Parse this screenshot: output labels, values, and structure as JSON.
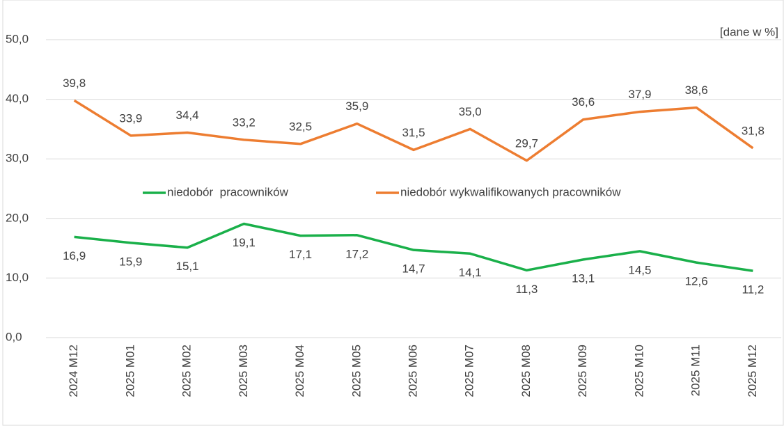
{
  "chart_data": {
    "type": "line",
    "annotation": "[dane w %]",
    "categories": [
      "2024 M12",
      "2025 M01",
      "2025 M02",
      "2025 M03",
      "2025 M04",
      "2025 M05",
      "2025 M06",
      "2025 M07",
      "2025 M08",
      "2025 M09",
      "2025 M10",
      "2025 M11",
      "2025 M12"
    ],
    "series": [
      {
        "name": "niedobór  pracowników",
        "color": "#1ab04a",
        "label_position": "below",
        "values": [
          16.9,
          15.9,
          15.1,
          19.1,
          17.1,
          17.2,
          14.7,
          14.1,
          11.3,
          13.1,
          14.5,
          12.6,
          11.2
        ],
        "value_labels": [
          "16,9",
          "15,9",
          "15,1",
          "19,1",
          "17,1",
          "17,2",
          "14,7",
          "14,1",
          "11,3",
          "13,1",
          "14,5",
          "12,6",
          "11,2"
        ]
      },
      {
        "name": "niedobór wykwalifikowanych pracowników",
        "color": "#ed7d31",
        "label_position": "above",
        "values": [
          39.8,
          33.9,
          34.4,
          33.2,
          32.5,
          35.9,
          31.5,
          35.0,
          29.7,
          36.6,
          37.9,
          38.6,
          31.8
        ],
        "value_labels": [
          "39,8",
          "33,9",
          "34,4",
          "33,2",
          "32,5",
          "35,9",
          "31,5",
          "35,0",
          "29,7",
          "36,6",
          "37,9",
          "38,6",
          "31,8"
        ]
      }
    ],
    "ylim": [
      0,
      50
    ],
    "yticks": [
      {
        "value": 0,
        "label": "0,0"
      },
      {
        "value": 10,
        "label": "10,0"
      },
      {
        "value": 20,
        "label": "20,0"
      },
      {
        "value": 30,
        "label": "30,0"
      },
      {
        "value": 40,
        "label": "40,0"
      },
      {
        "value": 50,
        "label": "50,0"
      }
    ],
    "grid": true
  }
}
